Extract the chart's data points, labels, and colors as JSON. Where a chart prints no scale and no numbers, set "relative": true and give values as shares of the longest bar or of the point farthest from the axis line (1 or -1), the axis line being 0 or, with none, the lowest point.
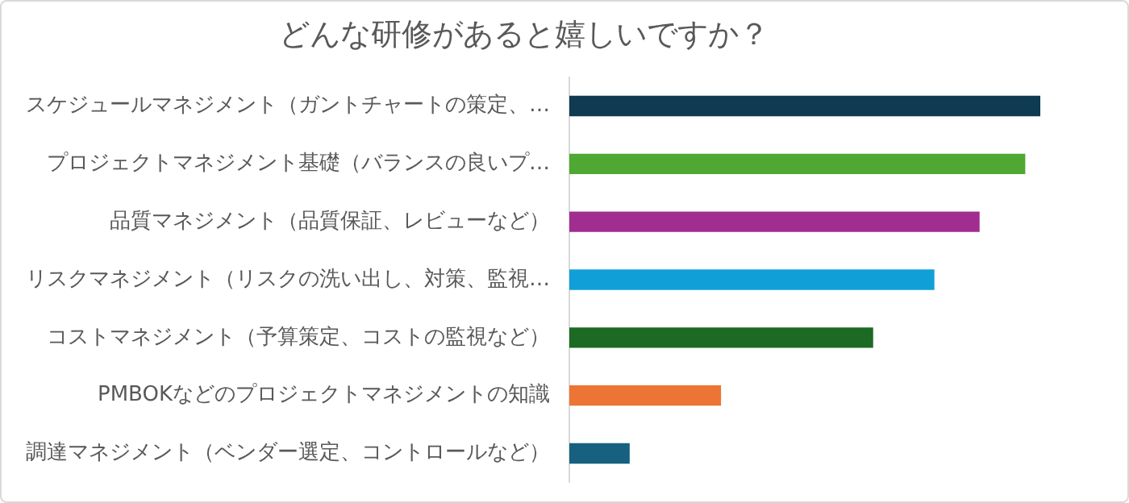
{
  "chart_data": {
    "type": "bar",
    "orientation": "horizontal",
    "relative": true,
    "title": "どんな研修があると嬉しいですか？",
    "categories": [
      "スケジュールマネジメント（ガントチャートの策定、…",
      "プロジェクトマネジメント基礎（バランスの良いプ…",
      "品質マネジメント（品質保証、レビューなど）",
      "リスクマネジメント（リスクの洗い出し、対策、監視…",
      "コストマネジメント（予算策定、コストの監視など）",
      "PMBOKなどのプロジェクトマネジメントの知識",
      "調達マネジメント（ベンダー選定、コントロールなど）"
    ],
    "values": [
      1,
      0.967,
      0.87,
      0.774,
      0.644,
      0.321,
      0.127
    ],
    "colors": [
      "#0f3a52",
      "#4ea832",
      "#a02d8f",
      "#119fd8",
      "#1c6a23",
      "#ec7434",
      "#17607f"
    ],
    "grid": false,
    "legend": false
  }
}
